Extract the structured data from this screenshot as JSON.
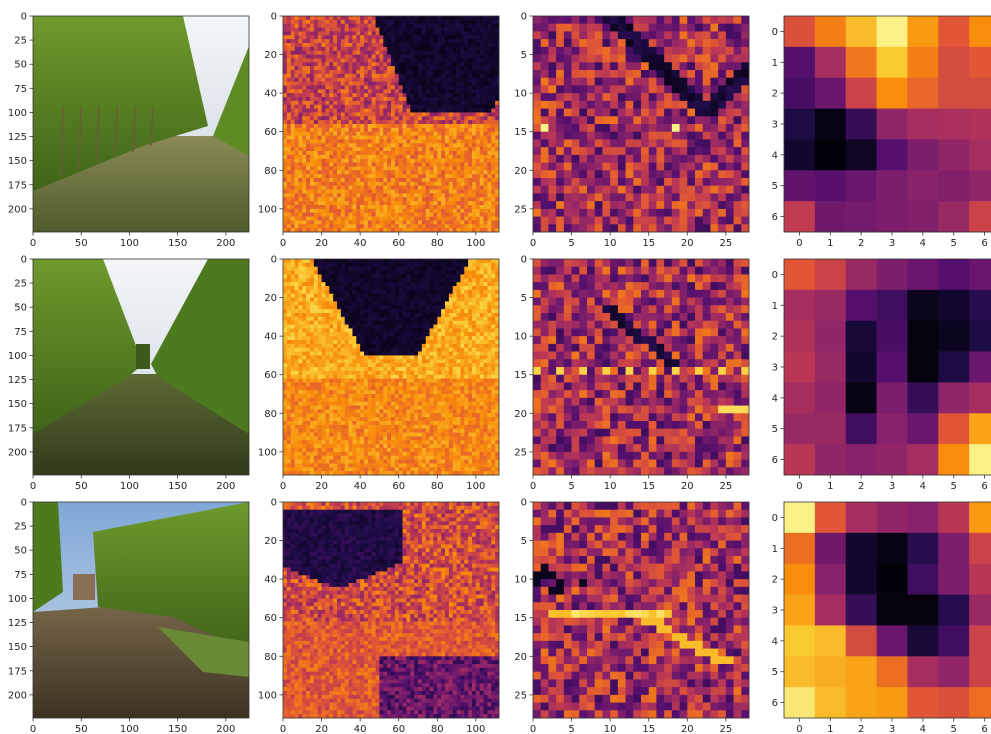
{
  "chart_data": {
    "type": "heatmap",
    "colormap": "inferno",
    "grid": false,
    "columns": [
      {
        "kind": "photo",
        "size": 224,
        "xticks": [
          0,
          50,
          100,
          150,
          200
        ],
        "yticks": [
          0,
          25,
          50,
          75,
          100,
          125,
          150,
          175,
          200
        ]
      },
      {
        "kind": "feature-map",
        "size": 112,
        "xticks": [
          0,
          20,
          40,
          60,
          80,
          100
        ],
        "yticks": [
          0,
          20,
          40,
          60,
          80,
          100
        ]
      },
      {
        "kind": "feature-map",
        "size": 28,
        "xticks": [
          0,
          5,
          10,
          15,
          20,
          25
        ],
        "yticks": [
          0,
          5,
          10,
          15,
          20,
          25
        ]
      },
      {
        "kind": "feature-map",
        "size": 7,
        "xticks": [
          0,
          1,
          2,
          3,
          4,
          5,
          6
        ],
        "yticks": [
          0,
          1,
          2,
          3,
          4,
          5,
          6
        ]
      }
    ],
    "rows": [
      {
        "scene": "vineyard-row-overcast",
        "map7": [
          [
            0.6,
            0.72,
            0.85,
            0.97,
            0.78,
            0.62,
            0.75
          ],
          [
            0.25,
            0.45,
            0.7,
            0.88,
            0.72,
            0.58,
            0.62
          ],
          [
            0.22,
            0.3,
            0.55,
            0.75,
            0.66,
            0.58,
            0.58
          ],
          [
            0.12,
            0.03,
            0.18,
            0.4,
            0.45,
            0.46,
            0.48
          ],
          [
            0.08,
            0.01,
            0.06,
            0.25,
            0.35,
            0.4,
            0.45
          ],
          [
            0.28,
            0.26,
            0.3,
            0.35,
            0.38,
            0.36,
            0.4
          ],
          [
            0.52,
            0.32,
            0.33,
            0.35,
            0.36,
            0.42,
            0.55
          ]
        ]
      },
      {
        "scene": "vineyard-row-cloudy",
        "map7": [
          [
            0.62,
            0.55,
            0.42,
            0.35,
            0.3,
            0.25,
            0.3
          ],
          [
            0.45,
            0.42,
            0.25,
            0.2,
            0.05,
            0.08,
            0.15
          ],
          [
            0.48,
            0.4,
            0.1,
            0.22,
            0.02,
            0.05,
            0.12
          ],
          [
            0.5,
            0.42,
            0.08,
            0.25,
            0.02,
            0.12,
            0.3
          ],
          [
            0.45,
            0.4,
            0.03,
            0.35,
            0.18,
            0.4,
            0.45
          ],
          [
            0.42,
            0.42,
            0.2,
            0.38,
            0.3,
            0.62,
            0.8
          ],
          [
            0.5,
            0.4,
            0.38,
            0.4,
            0.45,
            0.75,
            0.97
          ]
        ]
      },
      {
        "scene": "vineyard-row-tilled-soil",
        "map7": [
          [
            0.97,
            0.62,
            0.45,
            0.4,
            0.38,
            0.5,
            0.78
          ],
          [
            0.68,
            0.32,
            0.08,
            0.03,
            0.15,
            0.35,
            0.55
          ],
          [
            0.75,
            0.38,
            0.08,
            0.01,
            0.2,
            0.35,
            0.5
          ],
          [
            0.8,
            0.45,
            0.18,
            0.02,
            0.02,
            0.15,
            0.42
          ],
          [
            0.88,
            0.85,
            0.58,
            0.3,
            0.1,
            0.2,
            0.55
          ],
          [
            0.85,
            0.82,
            0.8,
            0.68,
            0.45,
            0.4,
            0.55
          ],
          [
            0.95,
            0.85,
            0.8,
            0.78,
            0.62,
            0.6,
            0.68
          ]
        ]
      }
    ]
  }
}
